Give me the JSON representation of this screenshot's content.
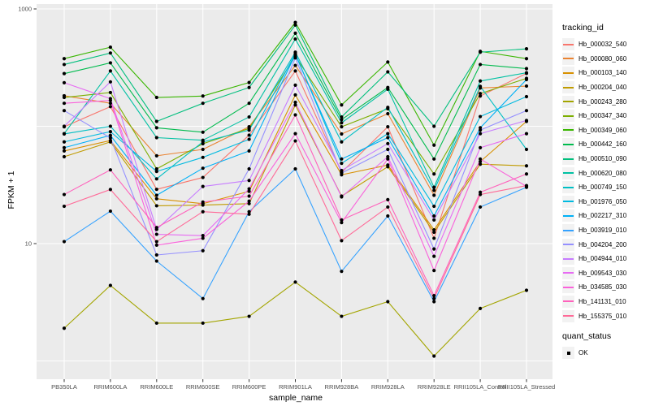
{
  "legend": {
    "tracking_title": "tracking_id",
    "quant_title": "quant_status",
    "quant_ok_label": "OK"
  },
  "colors": {
    "panel_bg": "#EBEBEB",
    "grid": "#FFFFFF",
    "tick_text": "#4D4D4D",
    "tick_mark": "#333333",
    "point": "#000000",
    "legend_key_bg": "#F2F2F2"
  },
  "chart_data": {
    "type": "line",
    "title": "",
    "xlabel": "sample_name",
    "ylabel": "FPKM + 1",
    "y_scale": "log10",
    "ylim": [
      1,
      1000
    ],
    "grid": "on",
    "legend_position": "right",
    "y_ticks": [
      {
        "label": "1000",
        "value": 1000
      },
      {
        "label": "10",
        "value": 10
      }
    ],
    "y_gridlines": [
      1000,
      100,
      10,
      1
    ],
    "categories": [
      "PB350LA",
      "RRIM600LA",
      "RRIM600LE",
      "RRIM600SE",
      "RRIM600PE",
      "RRIM901LA",
      "RRIM928BA",
      "RRIM928LA",
      "RRIM928LE",
      "RRII105LA_Control",
      "RRII105LA_Stressed"
    ],
    "series": [
      {
        "name": "Hb_000032_540",
        "color": "#F8766D",
        "values": [
          99,
          147,
          29,
          36.6,
          84,
          296,
          40.5,
          99,
          11.1,
          181,
          282
        ]
      },
      {
        "name": "Hb_000080_060",
        "color": "#EA8331",
        "values": [
          182,
          157,
          56,
          63.5,
          99,
          330,
          86,
          128,
          25.8,
          212,
          220
        ]
      },
      {
        "name": "Hb_000103_140",
        "color": "#D89000",
        "values": [
          61.6,
          75.6,
          24.1,
          21.9,
          27.9,
          185,
          38.6,
          46.7,
          13.1,
          50,
          110
        ]
      },
      {
        "name": "Hb_000204_040",
        "color": "#C09B00",
        "values": [
          55,
          73.6,
          21,
          21.3,
          21.9,
          152,
          25.4,
          45.2,
          12.5,
          47.5,
          46
        ]
      },
      {
        "name": "Hb_000243_280",
        "color": "#A3A500",
        "values": [
          1.9,
          4.4,
          2.1,
          2.1,
          2.4,
          4.7,
          2.4,
          3.2,
          1.1,
          2.8,
          4.0
        ]
      },
      {
        "name": "Hb_000347_340",
        "color": "#7CAE00",
        "values": [
          176,
          194,
          43.3,
          71,
          95.7,
          395,
          99,
          141,
          39.2,
          190,
          256
        ]
      },
      {
        "name": "Hb_000349_060",
        "color": "#39B600",
        "values": [
          377,
          472,
          176,
          181,
          236,
          767,
          152,
          353,
          69,
          435,
          377
        ]
      },
      {
        "name": "Hb_000442_160",
        "color": "#00BB4E",
        "values": [
          281,
          347,
          97,
          89,
          157,
          621,
          114,
          214,
          52.6,
          336,
          310
        ]
      },
      {
        "name": "Hb_000510_090",
        "color": "#00BF7D",
        "values": [
          336,
          421,
          110,
          157,
          214,
          729,
          120,
          291,
          100,
          428,
          457
        ]
      },
      {
        "name": "Hb_000620_080",
        "color": "#00C1A3",
        "values": [
          86.5,
          296,
          80,
          76,
          120,
          554,
          107,
          207,
          30.2,
          243,
          286
        ]
      },
      {
        "name": "Hb_000749_150",
        "color": "#00BFC4",
        "values": [
          86,
          100,
          35.6,
          73.6,
          92.7,
          428,
          73.6,
          145,
          28.4,
          219,
          63.5
        ]
      },
      {
        "name": "Hb_001976_050",
        "color": "#00BAE0",
        "values": [
          73.6,
          90,
          41.2,
          54.3,
          77.4,
          415,
          48.3,
          86.5,
          20.8,
          121,
          179
        ]
      },
      {
        "name": "Hb_002217_310",
        "color": "#00B0F6",
        "values": [
          65.7,
          83.6,
          25.8,
          43.9,
          61.6,
          408,
          52.6,
          80,
          17.2,
          97,
          250
        ]
      },
      {
        "name": "Hb_003919_010",
        "color": "#35A2FF",
        "values": [
          10.4,
          18.9,
          7.1,
          3.4,
          18.7,
          43.3,
          5.8,
          17.2,
          3.2,
          20.5,
          30.2
        ]
      },
      {
        "name": "Hb_004204_200",
        "color": "#9590FF",
        "values": [
          136,
          79.5,
          8.0,
          8.7,
          43.3,
          383,
          39.9,
          63.5,
          9.0,
          92.7,
          136
        ]
      },
      {
        "name": "Hb_004944_010",
        "color": "#C77CFF",
        "values": [
          100,
          239,
          13.2,
          30.7,
          34.5,
          224,
          42,
          71.2,
          15.9,
          86.5,
          112
        ]
      },
      {
        "name": "Hb_009543_030",
        "color": "#E76BF3",
        "values": [
          235,
          172,
          12,
          11.7,
          29.3,
          160,
          25,
          55,
          7.8,
          65.7,
          86.5
        ]
      },
      {
        "name": "Hb_034585_030",
        "color": "#FA62DB",
        "values": [
          157,
          166,
          9.7,
          11.1,
          23,
          86.5,
          15.1,
          52.6,
          5.9,
          52.6,
          30.7
        ]
      },
      {
        "name": "Hb_141131_010",
        "color": "#FF62BC",
        "values": [
          26.2,
          42.5,
          13.7,
          22.6,
          25.4,
          125,
          15.9,
          23.7,
          3.6,
          27.4,
          39.2
        ]
      },
      {
        "name": "Hb_155375_010",
        "color": "#FF6A98",
        "values": [
          20.8,
          28.9,
          10.4,
          18.7,
          17.8,
          75,
          10.6,
          20.5,
          3.4,
          26.2,
          31.2
        ]
      }
    ],
    "quant_status_series": {
      "label": "OK",
      "marker": "black-square"
    }
  }
}
